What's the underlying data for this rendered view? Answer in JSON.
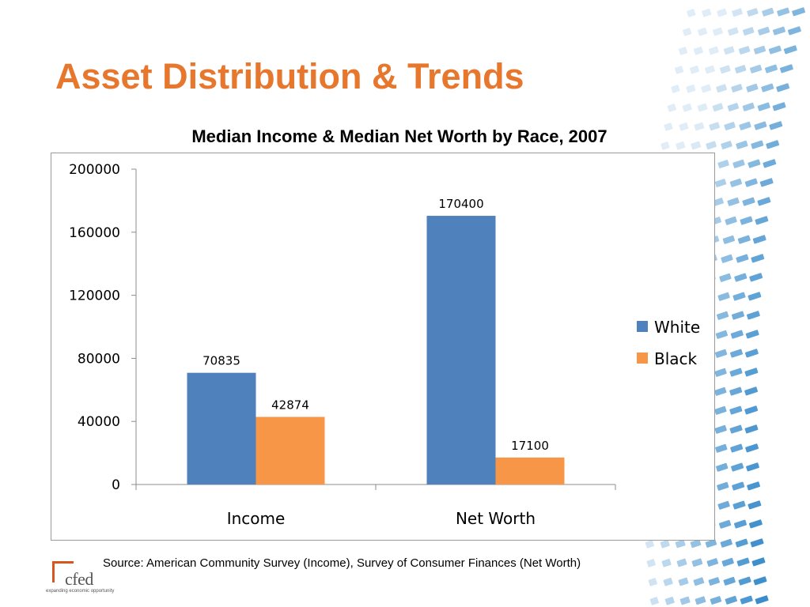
{
  "slide": {
    "title": "Asset Distribution & Trends",
    "source": "Source: American Community Survey (Income), Survey of Consumer Finances (Net Worth)",
    "logo": {
      "text": "cfed",
      "tagline": "expanding economic opportunity"
    }
  },
  "colors": {
    "title": "#E8772E",
    "white_series": "#4F81BD",
    "black_series": "#F79646",
    "decor_blue": "#2F86C9"
  },
  "chart_data": {
    "type": "bar",
    "title": "Median Income & Median Net Worth by Race, 2007",
    "categories": [
      "Income",
      "Net Worth"
    ],
    "series": [
      {
        "name": "White",
        "values": [
          70835,
          170400
        ]
      },
      {
        "name": "Black",
        "values": [
          42874,
          17100
        ]
      }
    ],
    "ylim": [
      0,
      200000
    ],
    "yticks": [
      0,
      40000,
      80000,
      120000,
      160000,
      200000
    ],
    "xlabel": "",
    "ylabel": "",
    "grid": false,
    "legend": "right",
    "data_labels": true
  }
}
